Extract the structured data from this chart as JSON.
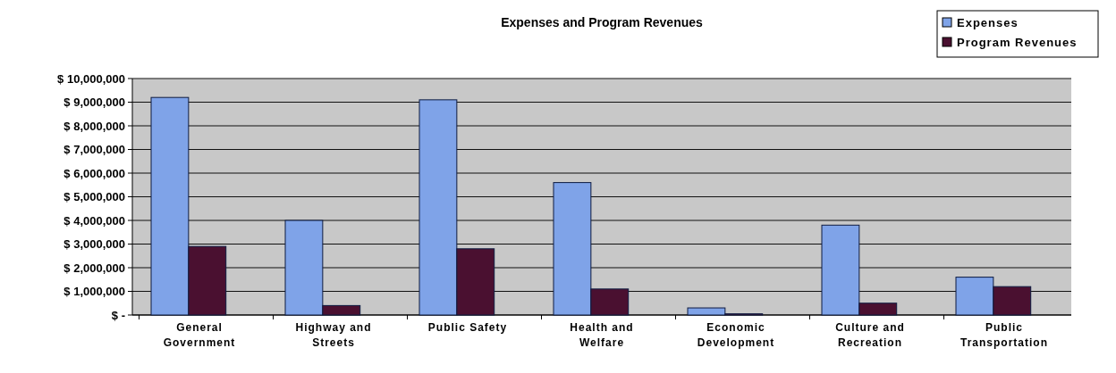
{
  "chart_data": {
    "type": "bar",
    "title": "Expenses and Program Revenues",
    "categories": [
      "General\nGovernment",
      "Highway and\nStreets",
      "Public Safety",
      "Health and\nWelfare",
      "Economic\nDevelopment",
      "Culture and\nRecreation",
      "Public\nTransportation"
    ],
    "series": [
      {
        "name": "Expenses",
        "color": "#7fa3e8",
        "values": [
          9200000,
          4000000,
          9100000,
          5600000,
          300000,
          3800000,
          1600000
        ]
      },
      {
        "name": "Program Revenues",
        "color": "#4a1030",
        "values": [
          2900000,
          400000,
          2800000,
          1100000,
          50000,
          500000,
          1200000
        ]
      }
    ],
    "ylim": [
      0,
      10000000
    ],
    "yticks": [
      {
        "value": 0,
        "label": "$ -"
      },
      {
        "value": 1000000,
        "label": "$ 1,000,000"
      },
      {
        "value": 2000000,
        "label": "$ 2,000,000"
      },
      {
        "value": 3000000,
        "label": "$ 3,000,000"
      },
      {
        "value": 4000000,
        "label": "$ 4,000,000"
      },
      {
        "value": 5000000,
        "label": "$ 5,000,000"
      },
      {
        "value": 6000000,
        "label": "$ 6,000,000"
      },
      {
        "value": 7000000,
        "label": "$ 7,000,000"
      },
      {
        "value": 8000000,
        "label": "$ 8,000,000"
      },
      {
        "value": 9000000,
        "label": "$ 9,000,000"
      },
      {
        "value": 10000000,
        "label": "$ 10,000,000"
      }
    ],
    "grid": "y",
    "legend": "top right"
  }
}
